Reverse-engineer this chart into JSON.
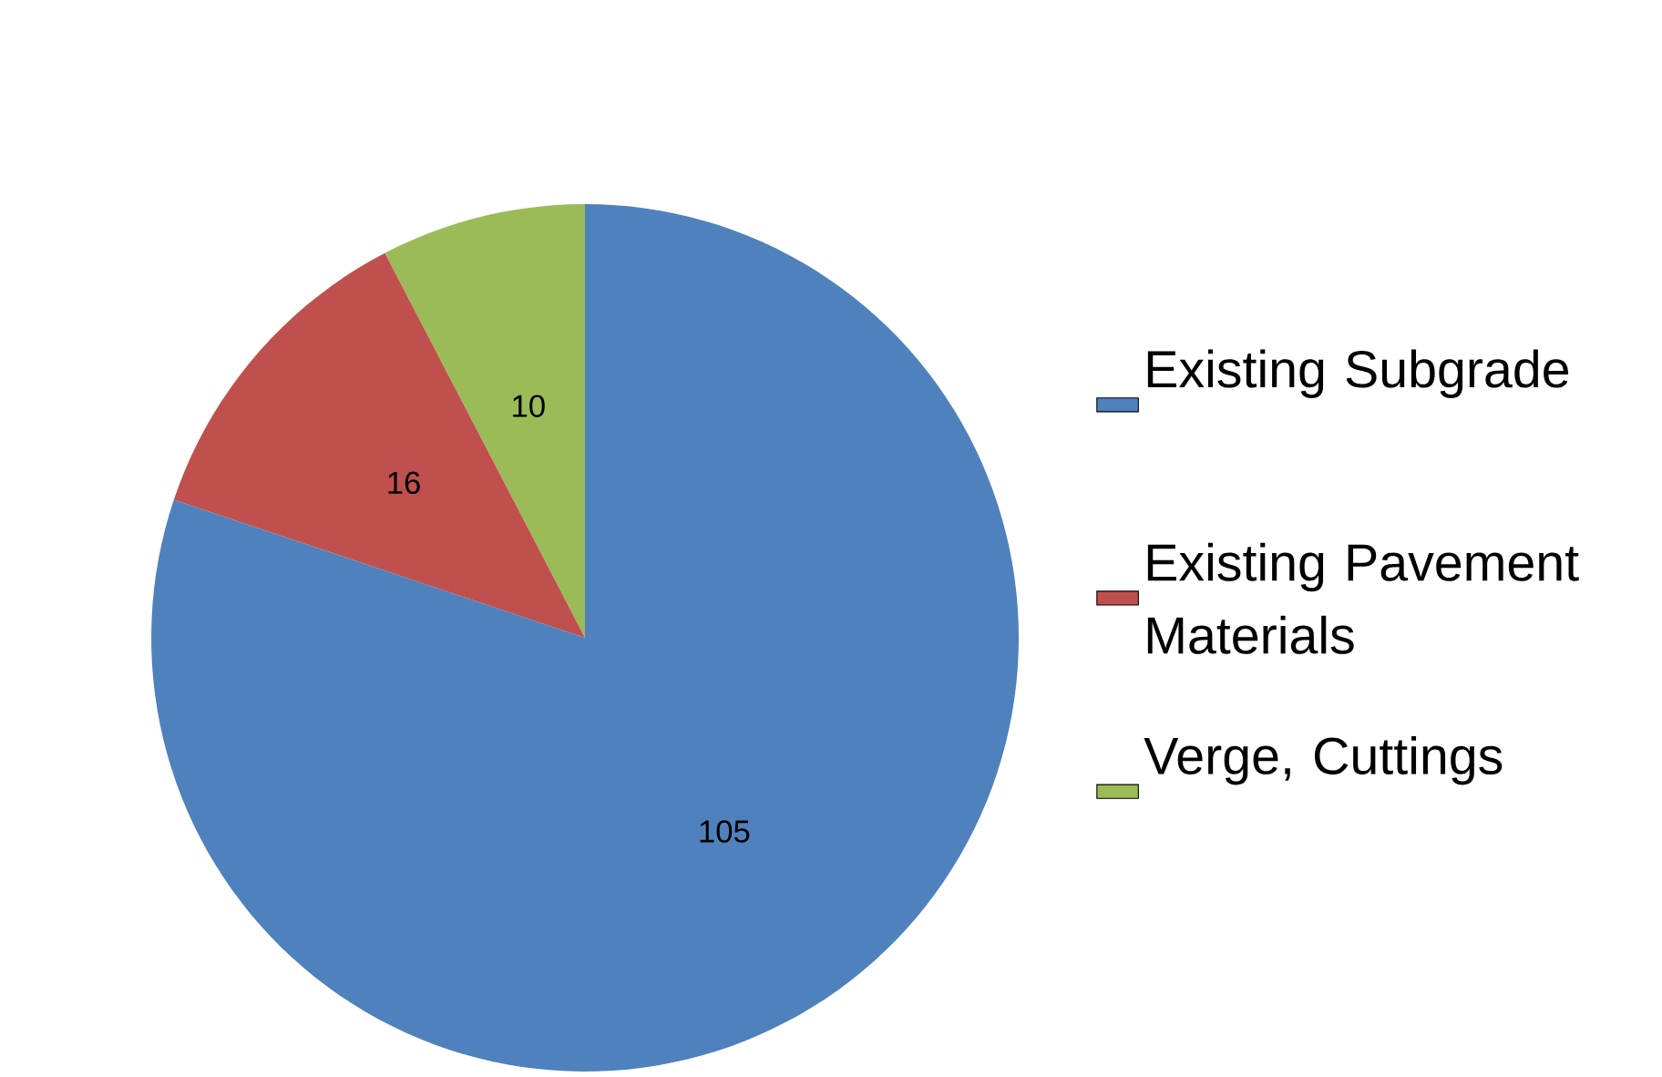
{
  "chart_data": {
    "type": "pie",
    "categories": [
      "Existing Subgrade",
      "Existing Pavement Materials",
      "Verge, Cuttings"
    ],
    "values": [
      105,
      16,
      10
    ],
    "colors": [
      "#4f81bd",
      "#c0504d",
      "#9bbb59"
    ],
    "data_labels": true,
    "legend": "right"
  }
}
